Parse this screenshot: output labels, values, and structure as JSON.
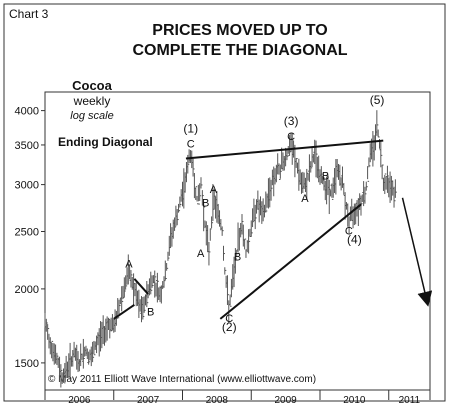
{
  "chart_data": {
    "type": "line",
    "label": "Chart 3",
    "title_lines": [
      "PRICES MOVED UP TO",
      "COMPLETE THE DIAGONAL"
    ],
    "subject": {
      "name": "Cocoa",
      "frequency": "weekly",
      "scale_note": "log scale"
    },
    "ylabel": "",
    "xlabel": "",
    "yscale": "log",
    "ylim": [
      1350,
      4300
    ],
    "y_ticks": [
      1500,
      2000,
      2500,
      3000,
      3500,
      4000
    ],
    "x_ticks": [
      "2006",
      "2007",
      "2008",
      "2009",
      "2010",
      "2011"
    ],
    "xlim": [
      2006.0,
      2011.6
    ],
    "grid": false,
    "series": [
      {
        "x": [
          2006.0,
          2006.08,
          2006.17,
          2006.25,
          2006.33,
          2006.42,
          2006.5,
          2006.58,
          2006.67,
          2006.75,
          2006.83,
          2006.92,
          2007.0,
          2007.08,
          2007.17,
          2007.22,
          2007.3,
          2007.36,
          2007.42,
          2007.5,
          2007.58,
          2007.67,
          2007.75,
          2007.83,
          2007.92,
          2008.0,
          2008.08,
          2008.12,
          2008.17,
          2008.22,
          2008.27,
          2008.33,
          2008.38,
          2008.45,
          2008.5,
          2008.58,
          2008.62,
          2008.68,
          2008.75,
          2008.8,
          2008.86,
          2008.92,
          2009.0,
          2009.08,
          2009.17,
          2009.25,
          2009.33,
          2009.42,
          2009.5,
          2009.58,
          2009.67,
          2009.75,
          2009.83,
          2009.92,
          2010.0,
          2010.08,
          2010.17,
          2010.25,
          2010.33,
          2010.42,
          2010.5,
          2010.58,
          2010.67,
          2010.72,
          2010.78,
          2010.83,
          2010.88,
          2010.92,
          2011.0,
          2011.05,
          2011.1
        ],
        "values": [
          1750,
          1620,
          1520,
          1420,
          1480,
          1550,
          1500,
          1580,
          1520,
          1620,
          1680,
          1750,
          1720,
          1880,
          2050,
          2130,
          1990,
          1880,
          1830,
          2000,
          2080,
          1950,
          2100,
          2450,
          2650,
          2900,
          3250,
          3400,
          3050,
          2800,
          3000,
          2560,
          2300,
          2850,
          2750,
          2500,
          2100,
          1850,
          2150,
          2350,
          2600,
          2300,
          2550,
          2800,
          2650,
          2900,
          3100,
          3200,
          3350,
          3500,
          3200,
          2950,
          3100,
          3400,
          3100,
          3000,
          2880,
          3200,
          3000,
          2600,
          2720,
          2800,
          2950,
          3350,
          3500,
          3800,
          3400,
          3050,
          3050,
          2950,
          2880
        ]
      }
    ],
    "annotations": {
      "ending_diagonal": "Ending Diagonal",
      "waves": [
        {
          "label": "(1)",
          "x": 2008.12,
          "y": 3400
        },
        {
          "label": "(2)",
          "x": 2008.68,
          "y": 1850
        },
        {
          "label": "(3)",
          "x": 2009.58,
          "y": 3500
        },
        {
          "label": "(4)",
          "x": 2010.5,
          "y": 2600
        },
        {
          "label": "(5)",
          "x": 2010.83,
          "y": 3800
        }
      ],
      "subwaves": [
        {
          "label": "A",
          "x": 2007.22,
          "y": 2130,
          "pos": "above"
        },
        {
          "label": "B",
          "x": 2007.42,
          "y": 1830,
          "pos": "right"
        },
        {
          "label": "C",
          "x": 2008.12,
          "y": 3400,
          "pos": "above"
        },
        {
          "label": "B",
          "x": 2008.22,
          "y": 2800,
          "pos": "right"
        },
        {
          "label": "A",
          "x": 2008.38,
          "y": 2300,
          "pos": "left"
        },
        {
          "label": "A",
          "x": 2008.45,
          "y": 2850,
          "pos": "above"
        },
        {
          "label": "B",
          "x": 2008.8,
          "y": 2350,
          "pos": "below"
        },
        {
          "label": "C",
          "x": 2008.68,
          "y": 1850,
          "pos": "below"
        },
        {
          "label": "C",
          "x": 2009.58,
          "y": 3500,
          "pos": "above"
        },
        {
          "label": "A",
          "x": 2009.78,
          "y": 2950,
          "pos": "below"
        },
        {
          "label": "B",
          "x": 2010.08,
          "y": 3000,
          "pos": "above"
        },
        {
          "label": "C",
          "x": 2010.42,
          "y": 2600,
          "pos": "below"
        }
      ],
      "trendlines": [
        {
          "from": [
            2008.05,
            3320
          ],
          "to": [
            2010.92,
            3560
          ]
        },
        {
          "from": [
            2008.55,
            1780
          ],
          "to": [
            2010.6,
            2780
          ]
        }
      ],
      "projection_arrow": {
        "from": [
          2011.2,
          2850
        ],
        "to": [
          2011.55,
          1920
        ]
      }
    },
    "copyright": "© May 2011 Elliott Wave International (www.elliottwave.com)"
  }
}
